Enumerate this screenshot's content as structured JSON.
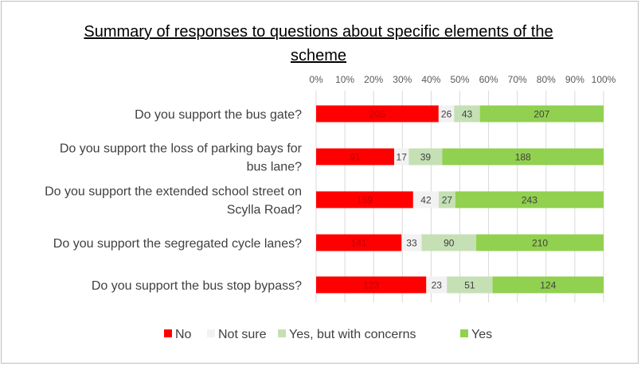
{
  "chart_data": {
    "type": "bar",
    "orientation": "horizontal",
    "stacking": "percent",
    "title": "Summary of responses to questions about specific elements of the scheme",
    "categories": [
      "Do you support the bus gate?",
      "Do you support the loss of parking bays for bus lane?",
      "Do you support the extended school street on Scylla Road?",
      "Do you support the segregated cycle lanes?",
      "Do you support the bus stop bypass?"
    ],
    "category_lines": [
      [
        "Do you support the bus gate?"
      ],
      [
        "Do you support the loss of parking bays for",
        "bus lane?"
      ],
      [
        "Do you support the extended school street on",
        "Scylla Road?"
      ],
      [
        "Do you support the segregated cycle lanes?"
      ],
      [
        "Do you support the bus stop bypass?"
      ]
    ],
    "series": [
      {
        "name": "No",
        "color": "#ff0000",
        "label_color": "#c00000",
        "values": [
          205,
          91,
          159,
          141,
          123
        ]
      },
      {
        "name": "Not sure",
        "color": "#f2f2f2",
        "label_color": "#404040",
        "values": [
          26,
          17,
          42,
          33,
          23
        ]
      },
      {
        "name": "Yes, but with concerns",
        "color": "#c5e0b4",
        "label_color": "#404040",
        "values": [
          43,
          39,
          27,
          90,
          51
        ]
      },
      {
        "name": "Yes",
        "color": "#92d050",
        "label_color": "#404040",
        "values": [
          207,
          188,
          243,
          210,
          124
        ]
      }
    ],
    "xticks": [
      "0%",
      "10%",
      "20%",
      "30%",
      "40%",
      "50%",
      "60%",
      "70%",
      "80%",
      "90%",
      "100%"
    ],
    "xlim": [
      0,
      100
    ],
    "grid": true,
    "legend_position": "bottom"
  }
}
